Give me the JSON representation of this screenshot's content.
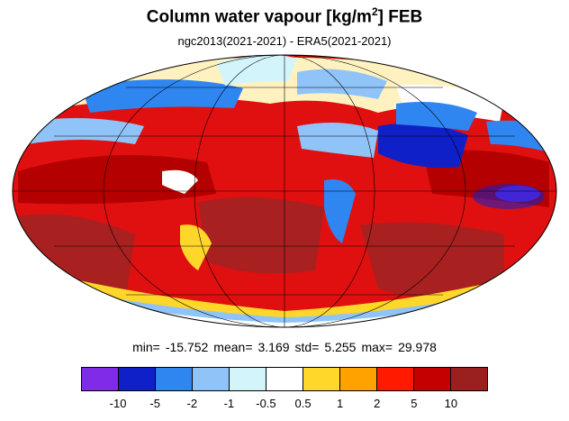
{
  "title_main": "Column water vapour [kg/m",
  "title_sup": "2",
  "title_tail": "] FEB",
  "subtitle": "ngc2013(2021-2021) - ERA5(2021-2021)",
  "stats": {
    "min_label": "min=",
    "min": "-15.752",
    "mean_label": "mean=",
    "mean": "3.169",
    "std_label": "std=",
    "std": "5.255",
    "max_label": "max=",
    "max": "29.978"
  },
  "legend": {
    "colors": [
      "#7f2be8",
      "#1020c8",
      "#2f86f0",
      "#90c4f8",
      "#d4f4fc",
      "#ffffff",
      "#ffd72a",
      "#ffa200",
      "#ff1a00",
      "#c40000",
      "#9a2020"
    ],
    "ticks": [
      "-10",
      "-5",
      "-2",
      "-1",
      "-0.5",
      "0.5",
      "1",
      "2",
      "5",
      "10"
    ]
  },
  "map": {
    "projection": "mollweide",
    "ocean_base": "#e01010"
  }
}
